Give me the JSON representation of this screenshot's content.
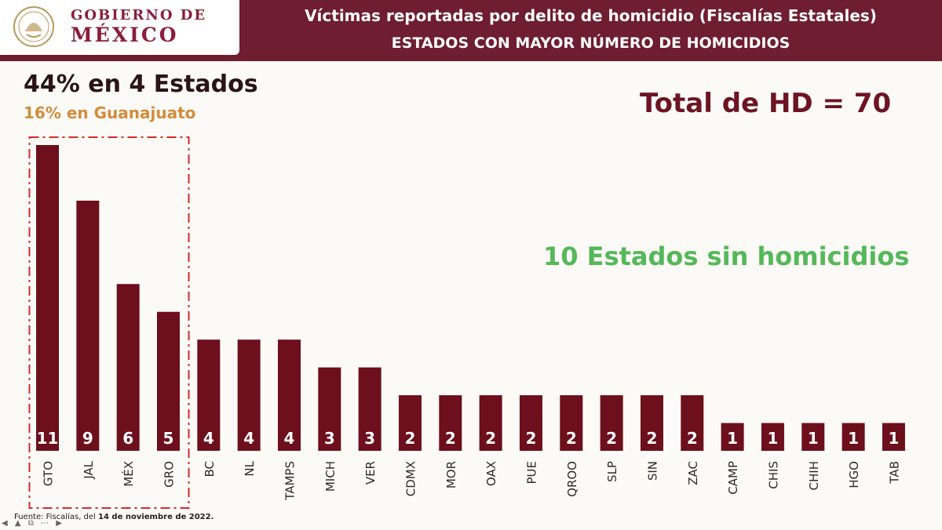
{
  "header": {
    "logo_line1": "GOBIERNO DE",
    "logo_line2": "MÉXICO",
    "title": "Víctimas reportadas por delito de homicidio (Fiscalías Estatales)",
    "subtitle": "ESTADOS CON MAYOR NÚMERO DE HOMICIDIOS"
  },
  "annotations": {
    "top_states": "44% en 4 Estados",
    "top_state": "16% en Guanajuato",
    "total": "Total de HD = 70",
    "zero_states": "10 Estados sin homicidios"
  },
  "footer": {
    "source_prefix": "Fuente: Fiscalías, del ",
    "source_date": "14 de noviembre de 2022."
  },
  "colors": {
    "header": "#6f1d31",
    "bar": "#6d0f1c",
    "highlight_box": "#d42a2a",
    "green_text": "#55b85a",
    "orange_text": "#d48c3a"
  },
  "chart_data": {
    "type": "bar",
    "categories": [
      "GTO",
      "JAL",
      "MÉX",
      "GRO",
      "BC",
      "NL",
      "TAMPS",
      "MICH",
      "VER",
      "CDMX",
      "MOR",
      "OAX",
      "PUE",
      "QROO",
      "SLP",
      "SIN",
      "ZAC",
      "CAMP",
      "CHIS",
      "CHIH",
      "HGO",
      "TAB"
    ],
    "values": [
      11,
      9,
      6,
      5,
      4,
      4,
      4,
      3,
      3,
      2,
      2,
      2,
      2,
      2,
      2,
      2,
      2,
      1,
      1,
      1,
      1,
      1
    ],
    "highlighted_categories": [
      "GTO",
      "JAL",
      "MÉX",
      "GRO"
    ],
    "data_labels": true,
    "grid": false
  }
}
